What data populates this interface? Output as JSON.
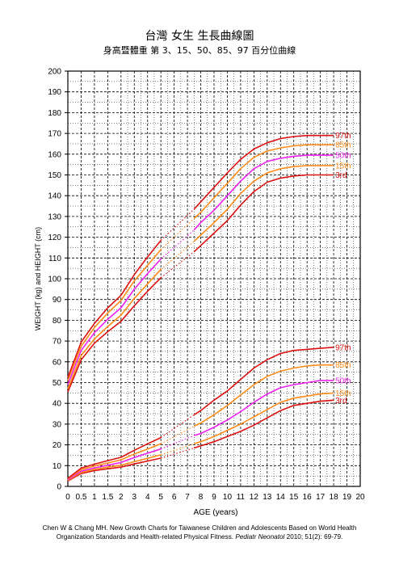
{
  "chart_data": {
    "type": "line",
    "title": "台灣  女生  生長曲線圖",
    "subtitle": "身高暨體重  第 3、15、50、85、97 百分位曲線",
    "xlabel": "AGE (years)",
    "ylabel": "WEIGHT (kg) and HEIGHT (cm)",
    "xlim": [
      0,
      20
    ],
    "ylim": [
      0,
      200
    ],
    "x_ticks": [
      0,
      0.5,
      1,
      1.5,
      2,
      3,
      4,
      5,
      6,
      7,
      8,
      9,
      10,
      11,
      12,
      13,
      14,
      15,
      16,
      17,
      18,
      19,
      20
    ],
    "x_tick_labels": [
      "0",
      "0.5",
      "1",
      "1.5",
      "2",
      "3",
      "4",
      "5",
      "6",
      "7",
      "8",
      "9",
      "10",
      "11",
      "12",
      "13",
      "14",
      "15",
      "16",
      "17",
      "18",
      "19",
      "20"
    ],
    "y_ticks": [
      0,
      10,
      20,
      30,
      40,
      50,
      60,
      70,
      80,
      90,
      100,
      110,
      120,
      130,
      140,
      150,
      160,
      170,
      180,
      190,
      200
    ],
    "grid": true,
    "gap_x_range": [
      5,
      7.5
    ],
    "groups": [
      {
        "group": "height",
        "series": [
          {
            "name": "3rd",
            "color": "#dd1111",
            "x": [
              0,
              0.5,
              1,
              1.5,
              2,
              3,
              4,
              5,
              7.5,
              8,
              9,
              10,
              11,
              12,
              13,
              14,
              15,
              16,
              17,
              18
            ],
            "y": [
              45.5,
              61,
              69,
              74.5,
              79.5,
              87,
              94,
              100.5,
              113,
              116,
              122,
              128,
              135.5,
              142,
              146.5,
              148.5,
              149.5,
              150,
              150,
              150
            ]
          },
          {
            "name": "15th",
            "color": "#ff8c1a",
            "x": [
              0,
              0.5,
              1,
              1.5,
              2,
              3,
              4,
              5,
              7.5,
              8,
              9,
              10,
              11,
              12,
              13,
              14,
              15,
              16,
              17,
              18
            ],
            "y": [
              47,
              63,
              71,
              77,
              82.5,
              90.5,
              97.5,
              104.5,
              118,
              121,
              127,
              133.5,
              141,
              147,
              151,
              153,
              154,
              154.5,
              154.5,
              154.5
            ]
          },
          {
            "name": "50th",
            "color": "#ee22ee",
            "x": [
              0,
              0.5,
              1,
              1.5,
              2,
              3,
              4,
              5,
              7.5,
              8,
              9,
              10,
              11,
              12,
              13,
              14,
              15,
              16,
              17,
              18
            ],
            "y": [
              49,
              65.5,
              74,
              80.5,
              86,
              95,
              102.5,
              109.5,
              123.5,
              127,
              133,
              140,
              147,
              153,
              156.5,
              158,
              159,
              159.5,
              159.5,
              159.5
            ]
          },
          {
            "name": "85th",
            "color": "#ff8c1a",
            "x": [
              0,
              0.5,
              1,
              1.5,
              2,
              3,
              4,
              5,
              7.5,
              8,
              9,
              10,
              11,
              12,
              13,
              14,
              15,
              16,
              17,
              18
            ],
            "y": [
              51,
              67.5,
              76.5,
              83.5,
              89.5,
              99,
              106.5,
              114,
              129,
              132,
              139,
              146,
              153,
              158.5,
              161.5,
              163,
              164,
              164.5,
              164.5,
              164.5
            ]
          },
          {
            "name": "97th",
            "color": "#dd1111",
            "x": [
              0,
              0.5,
              1,
              1.5,
              2,
              3,
              4,
              5,
              7.5,
              8,
              9,
              10,
              11,
              12,
              13,
              14,
              15,
              16,
              17,
              18
            ],
            "y": [
              52.5,
              69.5,
              78.5,
              86,
              92,
              102,
              110.5,
              118.5,
              133.5,
              137,
              144,
              151,
              157.5,
              162.5,
              165.5,
              167.5,
              168.5,
              169,
              169,
              169
            ]
          }
        ]
      },
      {
        "group": "weight",
        "series": [
          {
            "name": "3rd",
            "color": "#dd1111",
            "x": [
              0,
              0.5,
              1,
              1.5,
              2,
              3,
              4,
              5,
              7.5,
              8,
              9,
              10,
              11,
              12,
              13,
              14,
              15,
              16,
              17,
              18
            ],
            "y": [
              2.6,
              6.2,
              7.6,
              8.5,
              9.3,
              10.8,
              12.2,
              13.6,
              18.5,
              19.5,
              21.5,
              24,
              26.5,
              29.5,
              33,
              36.5,
              39,
              40,
              41,
              41.5
            ]
          },
          {
            "name": "15th",
            "color": "#ff8c1a",
            "x": [
              0,
              0.5,
              1,
              1.5,
              2,
              3,
              4,
              5,
              7.5,
              8,
              9,
              10,
              11,
              12,
              13,
              14,
              15,
              16,
              17,
              18
            ],
            "y": [
              2.9,
              6.7,
              8.2,
              9.3,
              10.2,
              11.9,
              13.5,
              15.2,
              20.5,
              21.5,
              24,
              27,
              30,
              33.5,
              37,
              40.5,
              42.5,
              43.5,
              44.5,
              45
            ]
          },
          {
            "name": "50th",
            "color": "#ee22ee",
            "x": [
              0,
              0.5,
              1,
              1.5,
              2,
              3,
              4,
              5,
              7.5,
              8,
              9,
              10,
              11,
              12,
              13,
              14,
              15,
              16,
              17,
              18
            ],
            "y": [
              3.2,
              7.3,
              8.9,
              10.2,
              11.5,
              13.9,
              16,
              18,
              24.5,
              25.5,
              28.5,
              32,
              36,
              40.5,
              44.5,
              47.5,
              49,
              50,
              51,
              51
            ]
          },
          {
            "name": "85th",
            "color": "#ff8c1a",
            "x": [
              0,
              0.5,
              1,
              1.5,
              2,
              3,
              4,
              5,
              7.5,
              8,
              9,
              10,
              11,
              12,
              13,
              14,
              15,
              16,
              17,
              18
            ],
            "y": [
              3.6,
              8.1,
              9.8,
              11.3,
              12.8,
              15.6,
              18,
              20.5,
              29,
              30.5,
              34.5,
              39,
              44,
              49,
              53,
              55.5,
              57,
              58,
              58.5,
              58.5
            ]
          },
          {
            "name": "97th",
            "color": "#dd1111",
            "x": [
              0,
              0.5,
              1,
              1.5,
              2,
              3,
              4,
              5,
              7.5,
              8,
              9,
              10,
              11,
              12,
              13,
              14,
              15,
              16,
              17,
              18
            ],
            "y": [
              3.9,
              8.8,
              10.7,
              12.4,
              14,
              17.4,
              20.5,
              23.5,
              34.5,
              36.5,
              41.5,
              46,
              51.5,
              57,
              61,
              64,
              65.5,
              66,
              66.5,
              67
            ]
          }
        ]
      }
    ]
  },
  "reference": {
    "line1": "Chen W & Chang MH. New Growth Charts for Taiwanese Children and Adolescents Based on World Health",
    "line2_pre": "Organization Standards and Health-related Physical Fitness.",
    "journal": "Pediatr Neonatol",
    "line2_post": "2010; 51(2): 69-79."
  }
}
